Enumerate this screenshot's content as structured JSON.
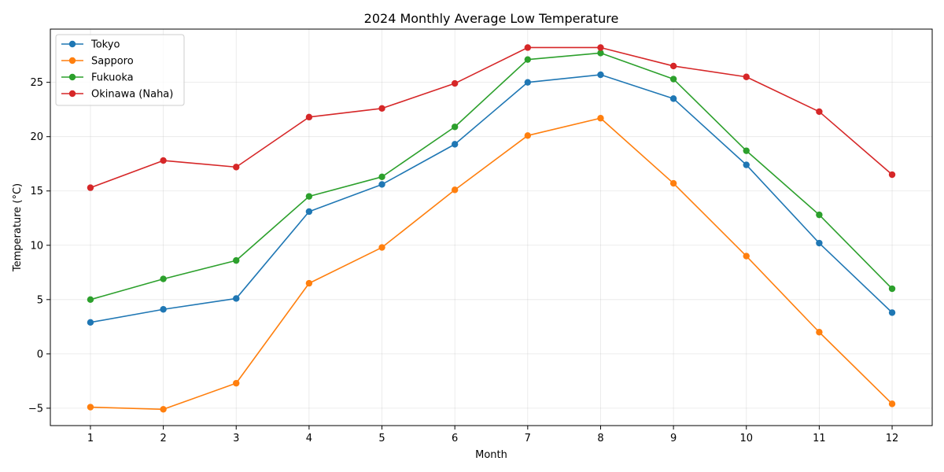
{
  "chart_data": {
    "type": "line",
    "title": "2024 Monthly Average Low Temperature",
    "xlabel": "Month",
    "ylabel": "Temperature (°C)",
    "x": [
      1,
      2,
      3,
      4,
      5,
      6,
      7,
      8,
      9,
      10,
      11,
      12
    ],
    "x_tick_labels": [
      "1",
      "2",
      "3",
      "4",
      "5",
      "6",
      "7",
      "8",
      "9",
      "10",
      "11",
      "12"
    ],
    "y_ticks": [
      -5,
      0,
      5,
      10,
      15,
      20,
      25
    ],
    "y_tick_labels": [
      "−5",
      "0",
      "5",
      "10",
      "15",
      "20",
      "25"
    ],
    "xlim": [
      0.45,
      12.55
    ],
    "ylim": [
      -6.6,
      29.9
    ],
    "grid": true,
    "legend_position": "upper left",
    "marker": "circle",
    "series": [
      {
        "name": "Tokyo",
        "color": "#1f77b4",
        "values": [
          2.9,
          4.1,
          5.1,
          13.1,
          15.6,
          19.3,
          25.0,
          25.7,
          23.5,
          17.4,
          10.2,
          3.8
        ]
      },
      {
        "name": "Sapporo",
        "color": "#ff7f0e",
        "values": [
          -4.9,
          -5.1,
          -2.7,
          6.5,
          9.8,
          15.1,
          20.1,
          21.7,
          15.7,
          9.0,
          2.0,
          -4.6
        ]
      },
      {
        "name": "Fukuoka",
        "color": "#2ca02c",
        "values": [
          5.0,
          6.9,
          8.6,
          14.5,
          16.3,
          20.9,
          27.1,
          27.7,
          25.3,
          18.7,
          12.8,
          6.0
        ]
      },
      {
        "name": "Okinawa (Naha)",
        "color": "#d62728",
        "values": [
          15.3,
          17.8,
          17.2,
          21.8,
          22.6,
          24.9,
          28.2,
          28.2,
          26.5,
          25.5,
          22.3,
          16.5
        ]
      }
    ]
  }
}
